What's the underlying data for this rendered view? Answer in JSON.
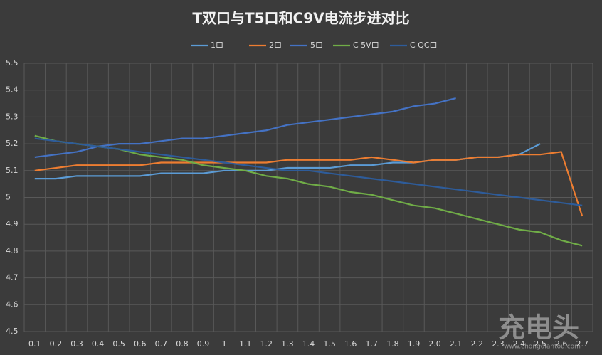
{
  "chart_data": {
    "type": "line",
    "title": "T双口与T5口和C9V电流步进对比",
    "categories": [
      "0.1",
      "0.2",
      "0.3",
      "0.4",
      "0.5",
      "0.6",
      "0.7",
      "0.8",
      "0.9",
      "1",
      "1.1",
      "1.2",
      "1.3",
      "1.4",
      "1.5",
      "1.6",
      "1.7",
      "1.8",
      "1.9",
      "2.0",
      "2.1",
      "2.2",
      "2.3",
      "2.4",
      "2.5",
      "2.6",
      "2.7"
    ],
    "series": [
      {
        "name": "1口",
        "color": "#5b9bd5",
        "values": [
          5.07,
          5.07,
          5.08,
          5.08,
          5.08,
          5.08,
          5.09,
          5.09,
          5.09,
          5.1,
          5.1,
          5.1,
          5.11,
          5.11,
          5.11,
          5.12,
          5.12,
          5.13,
          5.13,
          5.14,
          5.14,
          5.15,
          5.15,
          5.16,
          5.2,
          null,
          null
        ]
      },
      {
        "name": "2口",
        "color": "#ed7d31",
        "values": [
          5.1,
          5.11,
          5.12,
          5.12,
          5.12,
          5.12,
          5.13,
          5.13,
          5.13,
          5.13,
          5.13,
          5.13,
          5.14,
          5.14,
          5.14,
          5.14,
          5.15,
          5.14,
          5.13,
          5.14,
          5.14,
          5.15,
          5.15,
          5.16,
          5.16,
          5.17,
          4.93
        ]
      },
      {
        "name": "5口",
        "color": "#4472c4",
        "values": [
          5.15,
          5.16,
          5.17,
          5.19,
          5.2,
          5.2,
          5.21,
          5.22,
          5.22,
          5.23,
          5.24,
          5.25,
          5.27,
          5.28,
          5.29,
          5.3,
          5.31,
          5.32,
          5.34,
          5.35,
          5.37,
          null,
          null,
          null,
          null,
          null,
          null
        ]
      },
      {
        "name": "C 5V口",
        "color": "#70ad47",
        "values": [
          5.23,
          5.21,
          5.2,
          5.19,
          5.18,
          5.16,
          5.15,
          5.14,
          5.12,
          5.11,
          5.1,
          5.08,
          5.07,
          5.05,
          5.04,
          5.02,
          5.01,
          4.99,
          4.97,
          4.96,
          4.94,
          4.92,
          4.9,
          4.88,
          4.87,
          4.84,
          4.82
        ]
      },
      {
        "name": "C QC口",
        "color": "#2e5c9a",
        "values": [
          5.22,
          5.21,
          5.2,
          5.19,
          5.18,
          5.17,
          5.16,
          5.15,
          5.14,
          5.13,
          5.12,
          5.11,
          5.1,
          5.1,
          5.09,
          5.08,
          5.07,
          5.06,
          5.05,
          5.04,
          5.03,
          5.02,
          5.01,
          5.0,
          4.99,
          4.98,
          4.97
        ]
      }
    ],
    "ylim": [
      4.5,
      5.5
    ],
    "yticks": [
      4.5,
      4.6,
      4.7,
      4.8,
      4.9,
      5,
      5.1,
      5.2,
      5.3,
      5.4,
      5.5
    ],
    "grid": true,
    "legend": "top",
    "watermark": "充电头",
    "watermark_url": "www.chongdiantou.com"
  }
}
